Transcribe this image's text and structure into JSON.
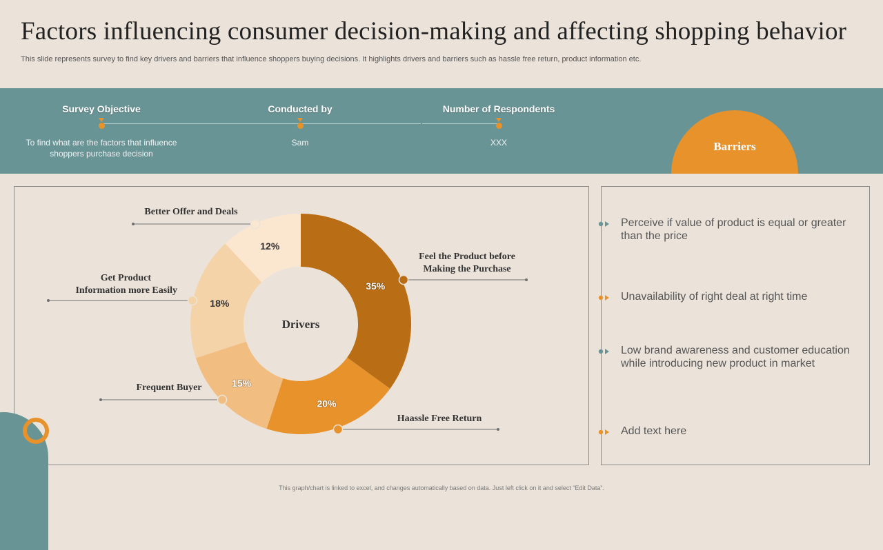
{
  "header": {
    "title": "Factors influencing consumer decision-making and affecting shopping behavior",
    "subtitle": "This slide represents survey to find key drivers and barriers that influence shoppers buying decisions. It highlights drivers and barriers such as hassle free return, product information etc."
  },
  "survey": {
    "objective_label": "Survey Objective",
    "objective_value": "To find what are the factors that influence shoppers purchase decision",
    "conducted_label": "Conducted by",
    "conducted_value": "Sam",
    "respondents_label": "Number of Respondents",
    "respondents_value": "XXX"
  },
  "barriers": {
    "title": "Barriers",
    "items": [
      {
        "text": "Perceive if value of product is equal or greater than the price",
        "color": "#689496"
      },
      {
        "text": "Unavailability of right deal at right time",
        "color": "#e8922c"
      },
      {
        "text": "Low brand awareness and customer education while introducing new product in market",
        "color": "#689496"
      },
      {
        "text": "Add text here",
        "color": "#e8922c"
      }
    ]
  },
  "footer": {
    "note": "This graph/chart is linked to excel, and changes automatically based on data. Just left click on it and select “Edit Data”."
  },
  "chart_data": {
    "type": "pie",
    "center_label": "Drivers",
    "slices": [
      {
        "label": "Feel the Product before Making the Purchase",
        "value": 35,
        "display": "35%",
        "color": "#b96d14"
      },
      {
        "label": "Haassle Free Return",
        "value": 20,
        "display": "20%",
        "color": "#e8922c"
      },
      {
        "label": "Frequent Buyer",
        "value": 15,
        "display": "15%",
        "color": "#f1bd80"
      },
      {
        "label": "Get Product Information more Easily",
        "value": 18,
        "display": "18%",
        "color": "#f5d3a8"
      },
      {
        "label": "Better Offer and Deals",
        "value": 12,
        "display": "12%",
        "color": "#fbe6cf"
      }
    ]
  }
}
